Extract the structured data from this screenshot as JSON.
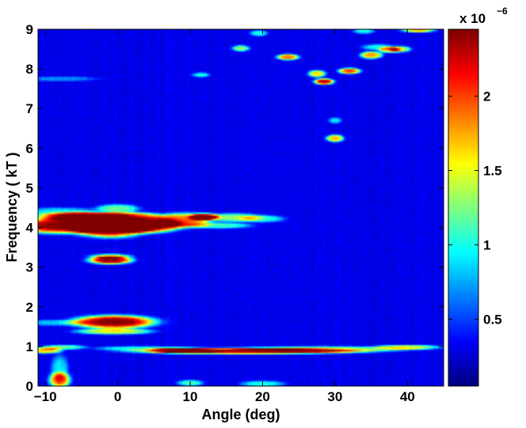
{
  "chart_data": {
    "type": "heatmap",
    "title": "",
    "xlabel": "Angle (deg)",
    "ylabel": "Frequency ( kT )",
    "xlim": [
      -11,
      45
    ],
    "ylim": [
      0,
      9
    ],
    "x_ticks": [
      -10,
      0,
      10,
      20,
      30,
      40
    ],
    "x_tick_labels": [
      "−10",
      "0",
      "10",
      "20",
      "30",
      "40"
    ],
    "y_ticks": [
      0,
      1,
      2,
      3,
      4,
      5,
      6,
      7,
      8,
      9
    ],
    "y_tick_labels": [
      "0",
      "1",
      "2",
      "3",
      "4",
      "5",
      "6",
      "7",
      "8",
      "9"
    ],
    "colormap": "jet",
    "colorbar": {
      "range": [
        0.05,
        2.45
      ],
      "ticks": [
        0.5,
        1,
        1.5,
        2
      ],
      "tick_labels": [
        "0.5",
        "1",
        "1.5",
        "2"
      ],
      "multiplier": "x 10",
      "exponent": "−6"
    },
    "background_level": 0.3,
    "features": [
      {
        "x": -7.5,
        "y": 4.05,
        "sx": 5.0,
        "sy": 0.13,
        "v": 2.45
      },
      {
        "x": -1.0,
        "y": 3.98,
        "sx": 3.2,
        "sy": 0.15,
        "v": 2.45
      },
      {
        "x": 4.0,
        "y": 4.05,
        "sx": 3.0,
        "sy": 0.12,
        "v": 2.45
      },
      {
        "x": -5.0,
        "y": 4.28,
        "sx": 4.0,
        "sy": 0.07,
        "v": 2.2
      },
      {
        "x": 1.0,
        "y": 4.28,
        "sx": 3.5,
        "sy": 0.07,
        "v": 2.0
      },
      {
        "x": 9.0,
        "y": 4.18,
        "sx": 2.5,
        "sy": 0.12,
        "v": 1.9
      },
      {
        "x": 12.0,
        "y": 4.27,
        "sx": 1.3,
        "sy": 0.06,
        "v": 2.0
      },
      {
        "x": 16.0,
        "y": 4.25,
        "sx": 2.5,
        "sy": 0.07,
        "v": 1.3
      },
      {
        "x": 14.0,
        "y": 4.05,
        "sx": 3.0,
        "sy": 0.05,
        "v": 1.1
      },
      {
        "x": 20.0,
        "y": 4.22,
        "sx": 2.0,
        "sy": 0.06,
        "v": 1.0
      },
      {
        "x": -8.0,
        "y": 4.4,
        "sx": 3.5,
        "sy": 0.07,
        "v": 0.9
      },
      {
        "x": 0.0,
        "y": 4.48,
        "sx": 2.0,
        "sy": 0.07,
        "v": 1.2
      },
      {
        "x": -1.0,
        "y": 3.18,
        "sx": 2.0,
        "sy": 0.07,
        "v": 2.4
      },
      {
        "x": -1.0,
        "y": 3.28,
        "sx": 2.0,
        "sy": 0.04,
        "v": 1.0
      },
      {
        "x": -0.5,
        "y": 1.62,
        "sx": 3.8,
        "sy": 0.11,
        "v": 2.45
      },
      {
        "x": -0.5,
        "y": 1.38,
        "sx": 3.5,
        "sy": 0.05,
        "v": 1.5
      },
      {
        "x": -9.0,
        "y": 1.6,
        "sx": 3.0,
        "sy": 0.05,
        "v": 0.8
      },
      {
        "x": 18.0,
        "y": 0.88,
        "sx": 10.0,
        "sy": 0.05,
        "v": 2.2
      },
      {
        "x": 9.0,
        "y": 0.9,
        "sx": 3.0,
        "sy": 0.05,
        "v": 1.5
      },
      {
        "x": 28.0,
        "y": 0.93,
        "sx": 8.0,
        "sy": 0.05,
        "v": 1.3
      },
      {
        "x": 40.0,
        "y": 0.98,
        "sx": 3.0,
        "sy": 0.04,
        "v": 1.4
      },
      {
        "x": -10.0,
        "y": 0.9,
        "sx": 1.5,
        "sy": 0.05,
        "v": 1.7
      },
      {
        "x": -7.5,
        "y": 0.98,
        "sx": 2.0,
        "sy": 0.04,
        "v": 1.2
      },
      {
        "x": 3.0,
        "y": 0.95,
        "sx": 4.0,
        "sy": 0.04,
        "v": 1.0
      },
      {
        "x": -8.0,
        "y": 0.15,
        "sx": 1.0,
        "sy": 0.13,
        "v": 1.7
      },
      {
        "x": -8.0,
        "y": 0.42,
        "sx": 0.8,
        "sy": 0.25,
        "v": 0.9
      },
      {
        "x": 10.0,
        "y": 0.08,
        "sx": 1.2,
        "sy": 0.05,
        "v": 1.1
      },
      {
        "x": 20.0,
        "y": 0.06,
        "sx": 2.0,
        "sy": 0.05,
        "v": 1.0
      },
      {
        "x": 28.5,
        "y": 7.68,
        "sx": 0.9,
        "sy": 0.05,
        "v": 2.3
      },
      {
        "x": 30.0,
        "y": 6.25,
        "sx": 0.8,
        "sy": 0.06,
        "v": 1.7
      },
      {
        "x": 30.0,
        "y": 6.7,
        "sx": 0.6,
        "sy": 0.05,
        "v": 0.9
      },
      {
        "x": 32.0,
        "y": 7.95,
        "sx": 1.0,
        "sy": 0.05,
        "v": 2.0
      },
      {
        "x": 23.5,
        "y": 8.3,
        "sx": 1.0,
        "sy": 0.05,
        "v": 1.9
      },
      {
        "x": 27.5,
        "y": 7.88,
        "sx": 0.8,
        "sy": 0.06,
        "v": 1.6
      },
      {
        "x": 35.0,
        "y": 8.35,
        "sx": 1.0,
        "sy": 0.06,
        "v": 1.8
      },
      {
        "x": 37.5,
        "y": 8.48,
        "sx": 1.0,
        "sy": 0.05,
        "v": 1.5
      },
      {
        "x": 39.0,
        "y": 8.5,
        "sx": 1.0,
        "sy": 0.05,
        "v": 1.4
      },
      {
        "x": 36.0,
        "y": 8.55,
        "sx": 1.5,
        "sy": 0.05,
        "v": 1.0
      },
      {
        "x": 17.0,
        "y": 8.52,
        "sx": 0.8,
        "sy": 0.05,
        "v": 1.3
      },
      {
        "x": 19.5,
        "y": 8.9,
        "sx": 0.8,
        "sy": 0.05,
        "v": 1.0
      },
      {
        "x": 41.5,
        "y": 8.98,
        "sx": 1.5,
        "sy": 0.04,
        "v": 1.7
      },
      {
        "x": 34.0,
        "y": 8.95,
        "sx": 1.0,
        "sy": 0.04,
        "v": 1.0
      },
      {
        "x": 11.5,
        "y": 7.85,
        "sx": 0.8,
        "sy": 0.04,
        "v": 1.0
      },
      {
        "x": -8.0,
        "y": 7.75,
        "sx": 3.5,
        "sy": 0.04,
        "v": 0.7
      }
    ]
  }
}
